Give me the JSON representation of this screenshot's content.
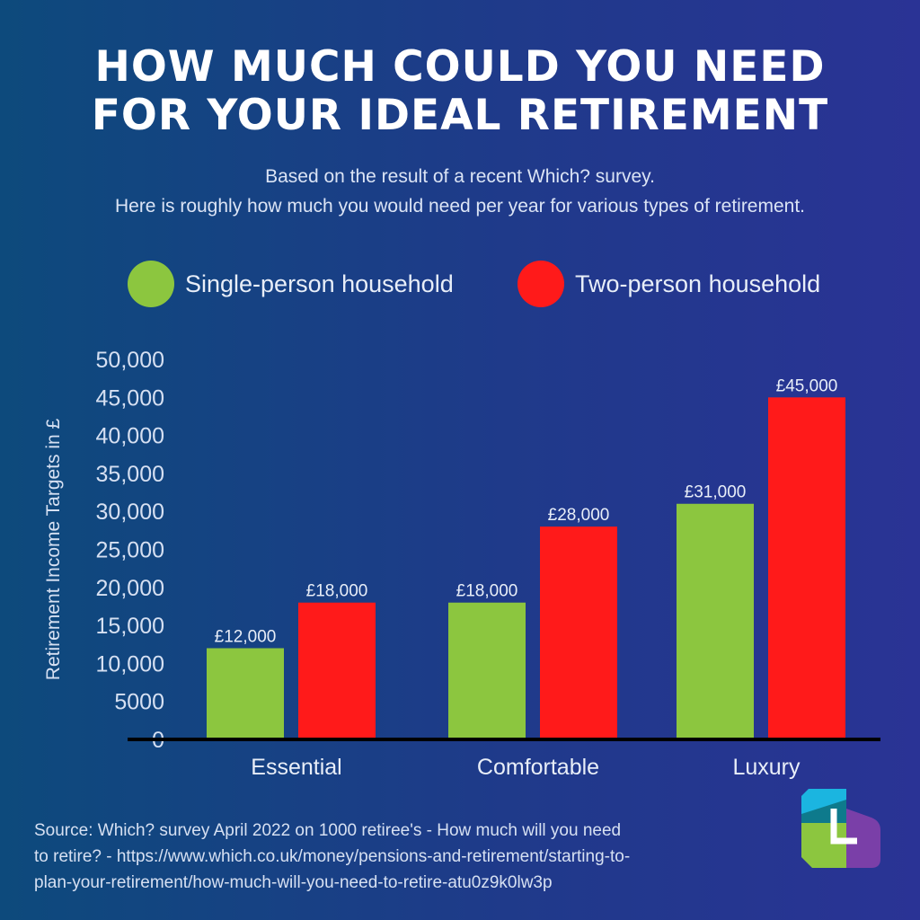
{
  "header": {
    "title_line1": "HOW MUCH COULD YOU NEED",
    "title_line2": "FOR YOUR IDEAL RETIREMENT",
    "subtitle_line1": "Based on the result of a recent Which? survey.",
    "subtitle_line2": "Here is roughly how much you would need per year for various types of retirement."
  },
  "legend": [
    {
      "label": "Single-person household",
      "color": "#8cc63f"
    },
    {
      "label": "Two-person household",
      "color": "#ff1a1a"
    }
  ],
  "chart_data": {
    "type": "bar",
    "categories": [
      "Essential",
      "Comfortable",
      "Luxury"
    ],
    "series": [
      {
        "name": "Single-person household",
        "values": [
          12000,
          18000,
          31000
        ],
        "color": "#8cc63f"
      },
      {
        "name": "Two-person household",
        "values": [
          18000,
          28000,
          45000
        ],
        "color": "#ff1a1a"
      }
    ],
    "data_labels": [
      [
        "£12,000",
        "£18,000",
        "£31,000"
      ],
      [
        "£18,000",
        "£28,000",
        "£45,000"
      ]
    ],
    "ylabel": "Retirement Income Targets in £",
    "ylim": [
      0,
      50000
    ],
    "yticks": [
      {
        "value": 0,
        "label": "0"
      },
      {
        "value": 5000,
        "label": "5000"
      },
      {
        "value": 10000,
        "label": "10,000"
      },
      {
        "value": 15000,
        "label": "15,000"
      },
      {
        "value": 20000,
        "label": "20,000"
      },
      {
        "value": 25000,
        "label": "25,000"
      },
      {
        "value": 30000,
        "label": "30,000"
      },
      {
        "value": 35000,
        "label": "35,000"
      },
      {
        "value": 40000,
        "label": "40,000"
      },
      {
        "value": 45000,
        "label": "45,000"
      },
      {
        "value": 50000,
        "label": "50,000"
      }
    ],
    "grid": false,
    "legend_position": "top"
  },
  "footer": {
    "source_line1": "Source: Which? survey April 2022 on 1000 retiree's - How much will you need",
    "source_line2": "to retire? - https://www.which.co.uk/money/pensions-and-retirement/starting-to-",
    "source_line3": "plan-your-retirement/how-much-will-you-need-to-retire-atu0z9k0lw3p"
  },
  "logo": {
    "icon": "l-logo-icon",
    "colors": [
      "#1bb5e0",
      "#0e7a8c",
      "#8cc63f",
      "#7a3fa8"
    ]
  }
}
